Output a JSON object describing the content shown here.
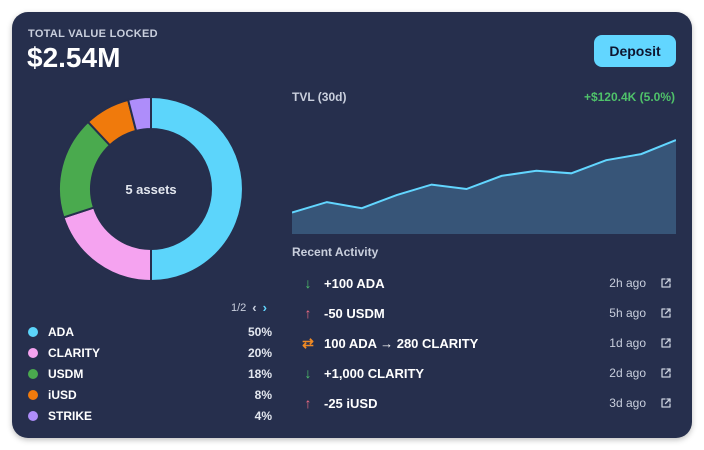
{
  "summary": {
    "label": "TOTAL VALUE LOCKED",
    "value": "$2.54M",
    "deposit_label": "Deposit"
  },
  "donut": {
    "center_label": "5 assets",
    "pager": "1/2"
  },
  "assets": [
    {
      "name": "ADA",
      "percent": "50%",
      "share": 50,
      "color": "#5cd5fb"
    },
    {
      "name": "CLARITY",
      "percent": "20%",
      "share": 20,
      "color": "#f5a3f0"
    },
    {
      "name": "USDM",
      "percent": "18%",
      "share": 18,
      "color": "#4aaa4e"
    },
    {
      "name": "iUSD",
      "percent": "8%",
      "share": 8,
      "color": "#f07a0c"
    },
    {
      "name": "STRIKE",
      "percent": "4%",
      "share": 4,
      "color": "#ae8dfa"
    }
  ],
  "tvl_chart": {
    "title": "TVL (30d)",
    "change": "+$120.4K (5.0%)",
    "series": [
      20,
      32,
      25,
      40,
      52,
      47,
      62,
      68,
      65,
      80,
      87,
      103
    ],
    "line_color": "#62d6ff",
    "fill_color": "#375578"
  },
  "activity": {
    "title": "Recent Activity",
    "items": [
      {
        "icon": "arrow-down-icon",
        "glyph": "↓",
        "icon_color": "#4fc26a",
        "text": "+100 ADA",
        "time": "2h ago"
      },
      {
        "icon": "arrow-up-icon",
        "glyph": "↑",
        "icon_color": "#f26b82",
        "text": "-50 USDM",
        "time": "5h ago"
      },
      {
        "icon": "swap-icon",
        "glyph": "⇄",
        "icon_color": "#f08a24",
        "text": "100 ADA → 280 CLARITY",
        "time": "1d ago"
      },
      {
        "icon": "arrow-down-icon",
        "glyph": "↓",
        "icon_color": "#4fc26a",
        "text": "+1,000 CLARITY",
        "time": "2d ago"
      },
      {
        "icon": "arrow-up-icon",
        "glyph": "↑",
        "icon_color": "#f26b82",
        "text": "-25 iUSD",
        "time": "3d ago"
      }
    ]
  }
}
